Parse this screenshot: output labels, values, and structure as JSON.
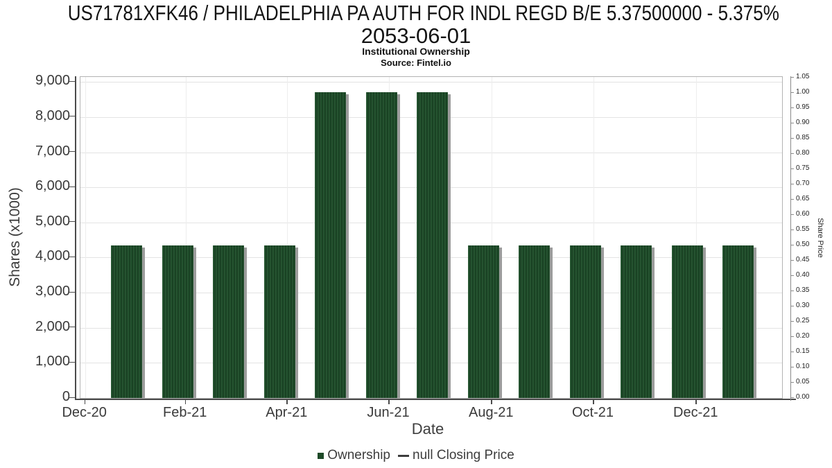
{
  "header": {
    "title_line1": "US71781XFK46 / PHILADELPHIA PA AUTH FOR INDL REGD B/E 5.37500000 - 5.375%",
    "title_line2": "2053-06-01",
    "subtitle": "Institutional Ownership",
    "source": "Source: Fintel.io"
  },
  "chart_data": {
    "type": "bar",
    "title": "US71781XFK46 / PHILADELPHIA PA AUTH FOR INDL REGD B/E 5.37500000 - 5.375% 2053-06-01",
    "subtitle": "Institutional Ownership",
    "source": "Source: Fintel.io",
    "xlabel": "Date",
    "ylabel_left": "Shares (x1000)",
    "ylabel_right": "Share Price",
    "categories": [
      "Jan-21",
      "Feb-21",
      "Mar-21",
      "Apr-21",
      "May-21",
      "Jun-21",
      "Jul-21",
      "Aug-21",
      "Sep-21",
      "Oct-21",
      "Nov-21",
      "Dec-21",
      "Jan-22"
    ],
    "series": [
      {
        "name": "Ownership",
        "type": "bar",
        "axis": "left",
        "values": [
          4350,
          4350,
          4350,
          4350,
          8700,
          8700,
          8700,
          4350,
          4350,
          4350,
          4350,
          4350,
          4350
        ]
      },
      {
        "name": "null Closing Price",
        "type": "line",
        "axis": "right",
        "values": []
      }
    ],
    "ylim_left": [
      0,
      9000
    ],
    "y_left_tick_labels": [
      "0",
      "1,000",
      "2,000",
      "3,000",
      "4,000",
      "5,000",
      "6,000",
      "7,000",
      "8,000",
      "9,000"
    ],
    "ylim_right": [
      0,
      1.05
    ],
    "y_right_tick_labels": [
      "0.00",
      "0.05",
      "0.10",
      "0.15",
      "0.20",
      "0.25",
      "0.30",
      "0.35",
      "0.40",
      "0.45",
      "0.50",
      "0.55",
      "0.60",
      "0.65",
      "0.70",
      "0.75",
      "0.80",
      "0.85",
      "0.90",
      "0.95",
      "1.00",
      "1.05"
    ],
    "x_tick_labels": [
      "Dec-20",
      "Feb-21",
      "Apr-21",
      "Jun-21",
      "Aug-21",
      "Oct-21",
      "Dec-21"
    ],
    "grid": true,
    "legend_position": "bottom"
  },
  "legend": {
    "items": [
      {
        "label": "Ownership",
        "marker": "square",
        "color": "#1d4a28"
      },
      {
        "label": "null Closing Price",
        "marker": "dash",
        "color": "#3d3d3d"
      }
    ]
  },
  "colors": {
    "bar": "#1d4a28",
    "bar_stripe_light": "#2d5c38",
    "bar_stripe_dark": "#163a1f",
    "bar_shadow": "#9c9c9c",
    "grid_horizontal": "#e3e3e3",
    "grid_vertical": "#ededed",
    "axis_dark": "#4a4a4a",
    "frame": "#b3b3b3",
    "right_axis": "#8a8a8a",
    "tick_text": "#3a3a3a",
    "title_text": "#141414"
  }
}
